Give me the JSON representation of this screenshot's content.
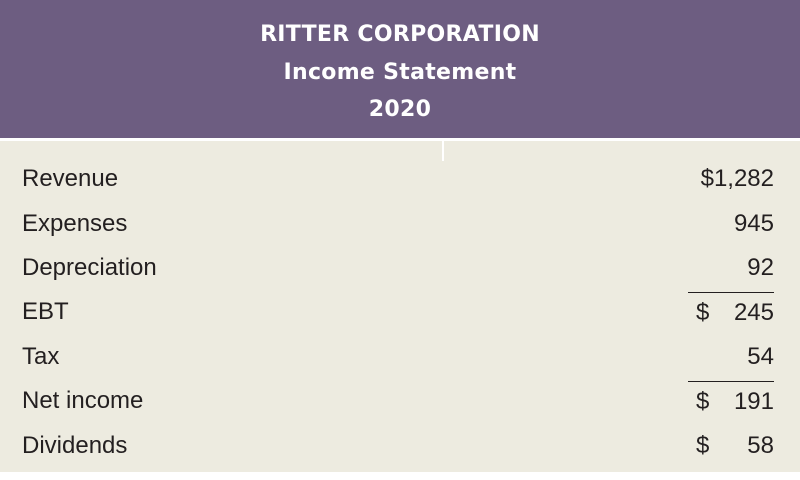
{
  "header": {
    "company": "RITTER CORPORATION",
    "statement": "Income Statement",
    "year": "2020"
  },
  "rows": [
    {
      "label": "Revenue",
      "currency": "",
      "amount": "$1,282"
    },
    {
      "label": "Expenses",
      "currency": "",
      "amount": "945"
    },
    {
      "label": "Depreciation",
      "currency": "",
      "amount": "92"
    },
    {
      "label": "EBT",
      "currency": "$",
      "amount": "245"
    },
    {
      "label": "Tax",
      "currency": "",
      "amount": "54"
    },
    {
      "label": "Net income",
      "currency": "$",
      "amount": "191"
    },
    {
      "label": "Dividends",
      "currency": "$",
      "amount": "58"
    }
  ],
  "colors": {
    "header_bg": "#6d5d81",
    "body_bg": "#edebe0",
    "text": "#231f20"
  }
}
